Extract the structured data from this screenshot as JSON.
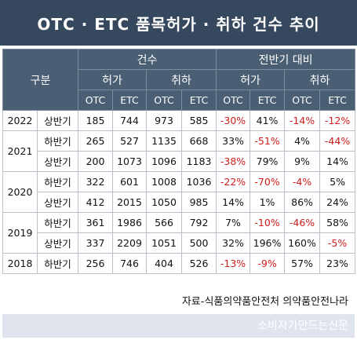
{
  "title": "OTC · ETC 품목허가 · 취하 건수 추이",
  "header": {
    "group": "구분",
    "count": "건수",
    "compare": "전반기 대비",
    "approve": "허가",
    "withdraw": "취하",
    "otc": "OTC",
    "etc": "ETC"
  },
  "rows": [
    {
      "year": "2022",
      "half": "상반기",
      "cells": [
        "185",
        "744",
        "973",
        "585",
        "-30%",
        "41%",
        "-14%",
        "-12%"
      ]
    },
    {
      "year": "2021",
      "half": "하반기",
      "cells": [
        "265",
        "527",
        "1135",
        "668",
        "33%",
        "-51%",
        "4%",
        "-44%"
      ]
    },
    {
      "year": "",
      "half": "상반기",
      "cells": [
        "200",
        "1073",
        "1096",
        "1183",
        "-38%",
        "79%",
        "9%",
        "14%"
      ]
    },
    {
      "year": "2020",
      "half": "하반기",
      "cells": [
        "322",
        "601",
        "1008",
        "1036",
        "-22%",
        "-70%",
        "-4%",
        "5%"
      ]
    },
    {
      "year": "",
      "half": "상반기",
      "cells": [
        "412",
        "2015",
        "1050",
        "985",
        "14%",
        "1%",
        "86%",
        "24%"
      ]
    },
    {
      "year": "2019",
      "half": "하반기",
      "cells": [
        "361",
        "1986",
        "566",
        "792",
        "7%",
        "-10%",
        "-46%",
        "58%"
      ]
    },
    {
      "year": "",
      "half": "상반기",
      "cells": [
        "337",
        "2209",
        "1051",
        "500",
        "32%",
        "196%",
        "160%",
        "-5%"
      ]
    },
    {
      "year": "2018",
      "half": "하반기",
      "cells": [
        "256",
        "746",
        "404",
        "526",
        "-13%",
        "-9%",
        "57%",
        "23%"
      ]
    }
  ],
  "source": "자료-식품의약품안전처 의약품안전나라",
  "footer": "소비자가만드는신문",
  "colors": {
    "header_bg": "#36485d",
    "negative": "#d11b1b",
    "footer_bg": "#dfe4ee"
  }
}
